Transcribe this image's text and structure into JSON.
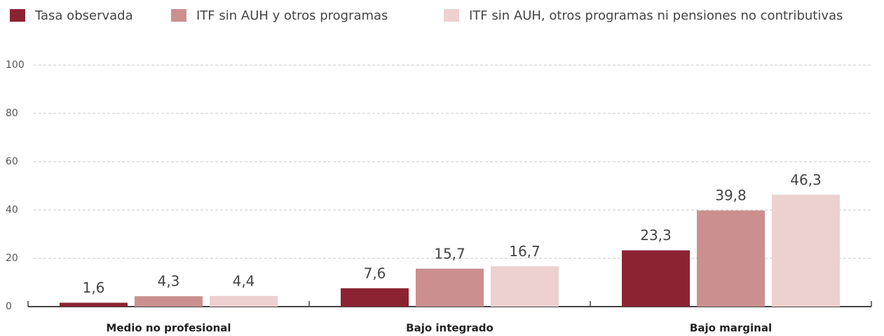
{
  "chart_data": {
    "type": "bar",
    "categories": [
      "Medio no profesional",
      "Bajo integrado",
      "Bajo marginal"
    ],
    "series": [
      {
        "name": "Tasa observada",
        "color": "#8b2332",
        "values": [
          1.6,
          7.6,
          23.3
        ],
        "value_labels": [
          "1,6",
          "7,6",
          "23,3"
        ]
      },
      {
        "name": "ITF sin AUH y otros programas",
        "color": "#cc8f8f",
        "values": [
          4.3,
          15.7,
          39.8
        ],
        "value_labels": [
          "4,3",
          "15,7",
          "39,8"
        ]
      },
      {
        "name": "ITF sin AUH, otros programas ni pensiones no contributivas",
        "color": "#edd0d0",
        "values": [
          4.4,
          16.7,
          46.3
        ],
        "value_labels": [
          "4,4",
          "16,7",
          "46,3"
        ]
      }
    ],
    "ylim": [
      0,
      100
    ],
    "yticks": [
      0,
      20,
      40,
      60,
      80,
      100
    ],
    "grid": true,
    "legend": "top"
  }
}
